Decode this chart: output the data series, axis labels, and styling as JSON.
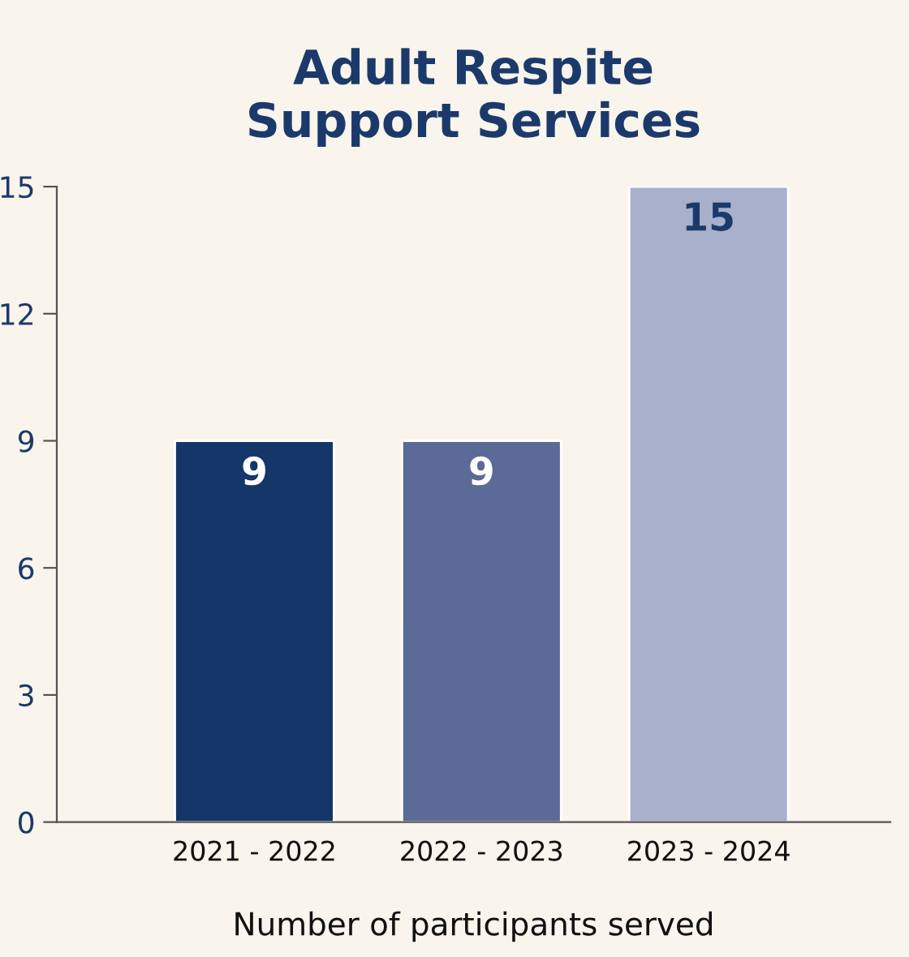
{
  "chart_data": {
    "type": "bar",
    "title": "Adult Respite\nSupport Services",
    "xlabel": "Number of participants served",
    "categories": [
      "2021 - 2022",
      "2022 - 2023",
      "2023 - 2024"
    ],
    "values": [
      9,
      9,
      15
    ],
    "colors": [
      "#143668",
      "#5b6a96",
      "#a9b0cc"
    ],
    "ylim": [
      0,
      15
    ],
    "yticks": [
      0,
      3,
      6,
      9,
      12,
      15
    ],
    "grid": false,
    "data_labels": true
  }
}
